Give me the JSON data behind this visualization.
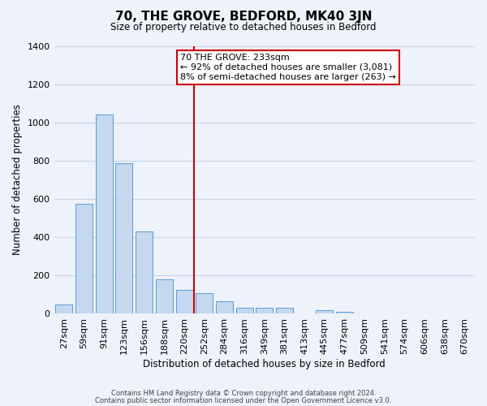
{
  "title": "70, THE GROVE, BEDFORD, MK40 3JN",
  "subtitle": "Size of property relative to detached houses in Bedford",
  "xlabel": "Distribution of detached houses by size in Bedford",
  "ylabel": "Number of detached properties",
  "bar_color": "#c5d8f0",
  "bar_edge_color": "#5b9bd5",
  "background_color": "#eef2fb",
  "grid_color": "#c8d4e8",
  "categories": [
    "27sqm",
    "59sqm",
    "91sqm",
    "123sqm",
    "156sqm",
    "188sqm",
    "220sqm",
    "252sqm",
    "284sqm",
    "316sqm",
    "349sqm",
    "381sqm",
    "413sqm",
    "445sqm",
    "477sqm",
    "509sqm",
    "541sqm",
    "574sqm",
    "606sqm",
    "638sqm",
    "670sqm"
  ],
  "values": [
    50,
    575,
    1040,
    785,
    430,
    180,
    125,
    110,
    65,
    30,
    30,
    30,
    0,
    20,
    10,
    0,
    0,
    0,
    0,
    0,
    0
  ],
  "ylim": [
    0,
    1400
  ],
  "yticks": [
    0,
    200,
    400,
    600,
    800,
    1000,
    1200,
    1400
  ],
  "vline_x": 7.0,
  "vline_color": "#cc0000",
  "annotation_title": "70 THE GROVE: 233sqm",
  "annotation_line1": "← 92% of detached houses are smaller (3,081)",
  "annotation_line2": "8% of semi-detached houses are larger (263) →",
  "annotation_box_color": "#ffffff",
  "annotation_box_edge": "#cc0000",
  "footer1": "Contains HM Land Registry data © Crown copyright and database right 2024.",
  "footer2": "Contains public sector information licensed under the Open Government Licence v3.0."
}
